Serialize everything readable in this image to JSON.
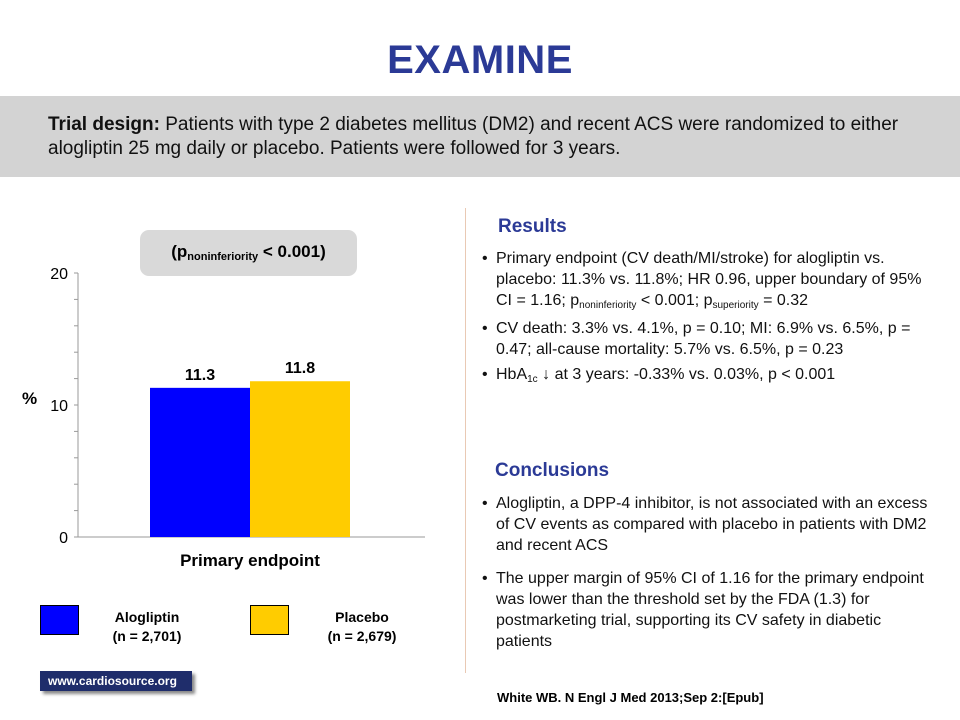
{
  "title": "EXAMINE",
  "trial_design": {
    "label": "Trial design:",
    "text": " Patients with type 2 diabetes mellitus (DM2) and recent ACS were randomized to either alogliptin 25 mg daily or placebo. Patients were followed for 3 years."
  },
  "p_note": {
    "prefix": "(p",
    "sub": "noninferiority",
    "suffix": " < 0.001)"
  },
  "chart_data": {
    "type": "bar",
    "categories": [
      "Primary endpoint"
    ],
    "series": [
      {
        "name": "Alogliptin",
        "values": [
          11.3
        ],
        "color": "#0000ff",
        "value_label": "11.3"
      },
      {
        "name": "Placebo",
        "values": [
          11.8
        ],
        "color": "#ffcc00",
        "value_label": "11.8"
      }
    ],
    "ylabel": "%",
    "ylim": [
      0,
      20
    ],
    "yticks": [
      0,
      10,
      20
    ],
    "grid": false,
    "legend_placement": "bottom"
  },
  "legend": [
    {
      "name": "Alogliptin",
      "n": "(n = 2,701)",
      "color": "#0000ff"
    },
    {
      "name": "Placebo",
      "n": "(n = 2,679)",
      "color": "#ffcc00"
    }
  ],
  "site": "www.cardiosource.org",
  "results": {
    "heading": "Results",
    "items": [
      {
        "t1": "Primary endpoint (CV death/MI/stroke) for alogliptin vs. placebo: 11.3% vs. 11.8%; HR 0.96, upper boundary of 95% CI = 1.16; p",
        "s1": "noninferiority",
        "t2": " < 0.001; p",
        "s2": "superiority",
        "t3": " = 0.32"
      },
      {
        "text": "CV death: 3.3% vs. 4.1%, p = 0.10; MI: 6.9% vs. 6.5%, p = 0.47; all-cause mortality: 5.7% vs. 6.5%, p = 0.23"
      },
      {
        "t1": "HbA",
        "s1": "1c",
        "t2": " ↓ at 3 years: -0.33% vs. 0.03%, p < 0.001"
      }
    ]
  },
  "conclusions": {
    "heading": "Conclusions",
    "items": [
      {
        "text": "Alogliptin, a DPP-4 inhibitor, is not associated with an excess of CV events as compared with placebo in patients with DM2 and recent ACS"
      },
      {
        "text": "The upper margin of 95% CI of 1.16 for the primary endpoint was lower than the threshold set by the FDA (1.3) for postmarketing trial, supporting its CV safety in diabetic patients"
      }
    ]
  },
  "citation": "White WB. N Engl J Med 2013;Sep 2:[Epub]"
}
